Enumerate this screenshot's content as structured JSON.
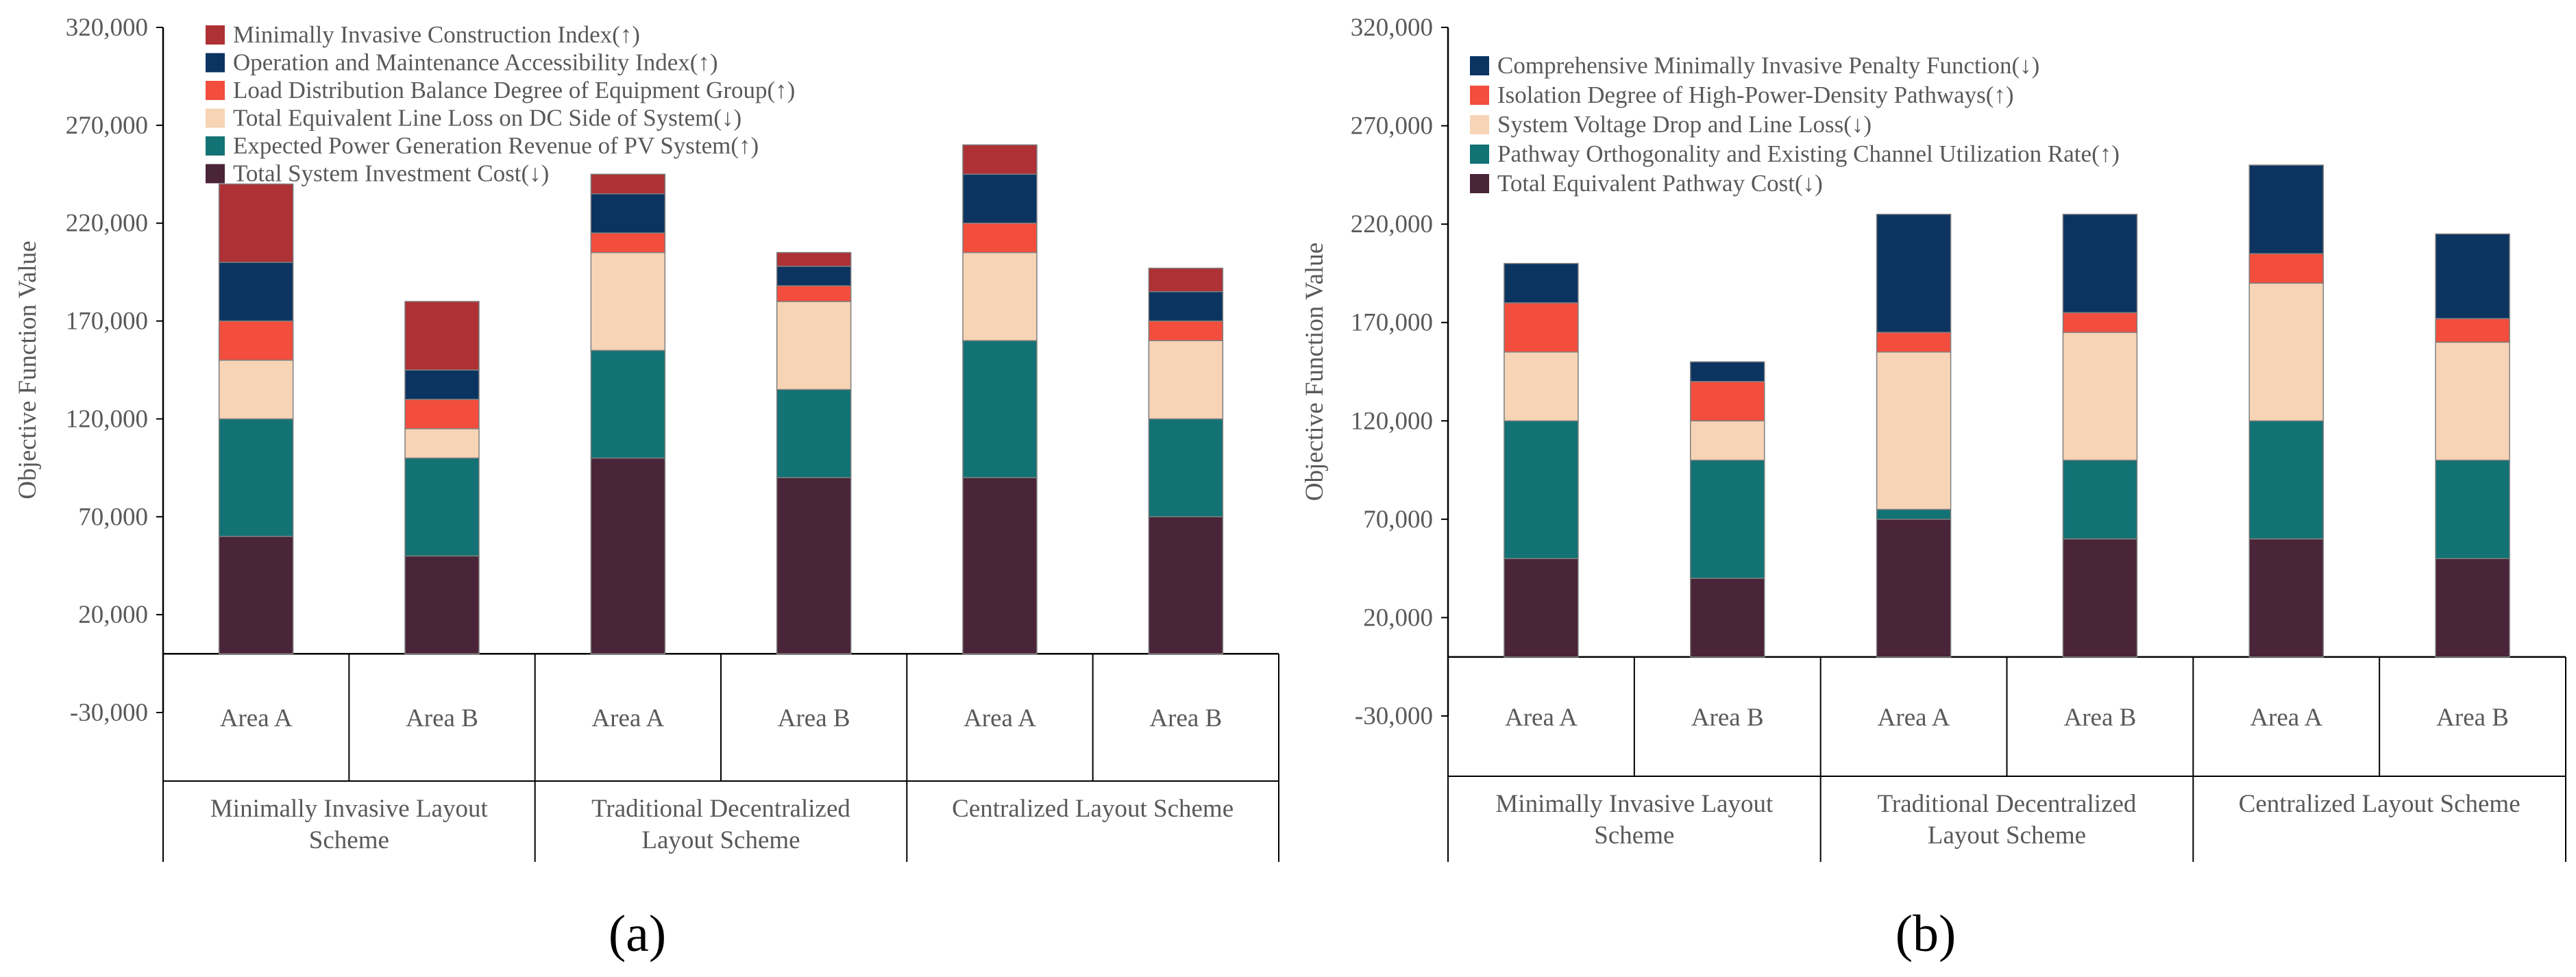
{
  "colors": {
    "seg1": "#4a2438",
    "seg2": "#127274",
    "seg3": "#f7d4b6",
    "seg4": "#f24d3d",
    "seg5": "#0b3461",
    "seg6": "#ad3135",
    "axis": "#000000",
    "tick_text": "#595959",
    "bar_edge": "#7f7f7f"
  },
  "panel_labels": [
    "(a)",
    "(b)"
  ],
  "chart_data": [
    {
      "type": "bar",
      "stacked": true,
      "panel": "(a)",
      "ylabel": "Objective Function Value",
      "ylim": [
        -30000,
        320000
      ],
      "yticks": [
        "320,000",
        "270,000",
        "220,000",
        "170,000",
        "120,000",
        "70,000",
        "20,000",
        "-30,000"
      ],
      "ytick_values": [
        320000,
        270000,
        220000,
        170000,
        120000,
        70000,
        20000,
        -30000
      ],
      "categories": [
        "Area A",
        "Area B",
        "Area A",
        "Area B",
        "Area A",
        "Area B"
      ],
      "groups": [
        "Minimally Invasive Layout Scheme",
        "Traditional Decentralized Layout Scheme",
        "Centralized Layout Scheme"
      ],
      "legend_position": "top-left",
      "series": [
        {
          "name": "Total System Investment Cost(↓)",
          "values": [
            60000,
            50000,
            100000,
            90000,
            90000,
            70000
          ]
        },
        {
          "name": "Expected Power Generation Revenue of PV System(↑)",
          "values": [
            60000,
            50000,
            55000,
            45000,
            70000,
            50000
          ]
        },
        {
          "name": "Total Equivalent Line Loss on DC Side of System(↓)",
          "values": [
            30000,
            15000,
            50000,
            45000,
            45000,
            40000
          ]
        },
        {
          "name": "Load Distribution Balance Degree of Equipment Group(↑)",
          "values": [
            20000,
            15000,
            10000,
            8000,
            15000,
            10000
          ]
        },
        {
          "name": "Operation and Maintenance Accessibility Index(↑)",
          "values": [
            30000,
            15000,
            20000,
            10000,
            25000,
            15000
          ]
        },
        {
          "name": "Minimally Invasive Construction Index(↑)",
          "values": [
            40000,
            35000,
            10000,
            7000,
            15000,
            12000
          ]
        }
      ]
    },
    {
      "type": "bar",
      "stacked": true,
      "panel": "(b)",
      "ylabel": "Objective Function Value",
      "ylim": [
        -30000,
        320000
      ],
      "yticks": [
        "320,000",
        "270,000",
        "220,000",
        "170,000",
        "120,000",
        "70,000",
        "20,000",
        "-30,000"
      ],
      "ytick_values": [
        320000,
        270000,
        220000,
        170000,
        120000,
        70000,
        20000,
        -30000
      ],
      "categories": [
        "Area A",
        "Area B",
        "Area A",
        "Area B",
        "Area A",
        "Area B"
      ],
      "groups": [
        "Minimally Invasive Layout Scheme",
        "Traditional Decentralized Layout Scheme",
        "Centralized Layout Scheme"
      ],
      "legend_position": "top-left",
      "series": [
        {
          "name": "Total Equivalent Pathway Cost(↓)",
          "values": [
            50000,
            40000,
            70000,
            60000,
            60000,
            50000
          ]
        },
        {
          "name": "Pathway Orthogonality and Existing Channel Utilization Rate(↑)",
          "values": [
            70000,
            60000,
            5000,
            40000,
            60000,
            50000
          ]
        },
        {
          "name": "System Voltage Drop and Line Loss(↓)",
          "values": [
            35000,
            20000,
            80000,
            65000,
            70000,
            60000
          ]
        },
        {
          "name": "Isolation Degree of High-Power-Density Pathways(↑)",
          "values": [
            25000,
            20000,
            10000,
            10000,
            15000,
            12000
          ]
        },
        {
          "name": "Comprehensive Minimally Invasive Penalty Function(↓)",
          "values": [
            20000,
            10000,
            60000,
            50000,
            45000,
            43000
          ]
        }
      ]
    }
  ]
}
